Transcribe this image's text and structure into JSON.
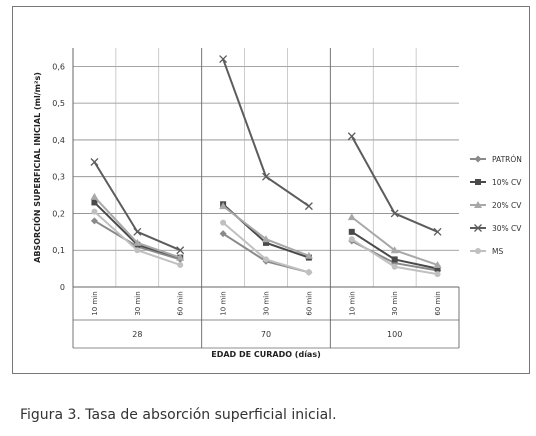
{
  "chart_data": {
    "type": "line",
    "ylabel": "ABSORCIÓN SUPERFICIAL INICIAL (ml/m²s)",
    "xlabel": "EDAD DE CURADO (días)",
    "ylim": [
      0,
      0.65
    ],
    "yticks": [
      "0",
      "0,1",
      "0,2",
      "0,3",
      "0,4",
      "0,5",
      "0,6"
    ],
    "ytick_values": [
      0,
      0.1,
      0.2,
      0.3,
      0.4,
      0.5,
      0.6
    ],
    "groups": [
      "28",
      "70",
      "100"
    ],
    "subcategories": [
      "10 min",
      "30 min",
      "60 min"
    ],
    "legend_position": "right",
    "series": [
      {
        "name": "PATRÓN",
        "color": "#8a8a8a",
        "marker": "diamond",
        "values": [
          [
            0.18,
            0.11,
            0.075
          ],
          [
            0.145,
            0.07,
            0.04
          ],
          [
            0.125,
            0.065,
            0.045
          ]
        ]
      },
      {
        "name": "10% CV",
        "color": "#4a4a4a",
        "marker": "square",
        "values": [
          [
            0.23,
            0.115,
            0.08
          ],
          [
            0.225,
            0.12,
            0.08
          ],
          [
            0.15,
            0.075,
            0.05
          ]
        ]
      },
      {
        "name": "20% CV",
        "color": "#a8a8a8",
        "marker": "triangle",
        "values": [
          [
            0.245,
            0.12,
            0.08
          ],
          [
            0.22,
            0.13,
            0.085
          ],
          [
            0.19,
            0.1,
            0.06
          ]
        ]
      },
      {
        "name": "30% CV",
        "color": "#5c5c5c",
        "marker": "x",
        "values": [
          [
            0.34,
            0.15,
            0.1
          ],
          [
            0.62,
            0.3,
            0.22
          ],
          [
            0.41,
            0.2,
            0.15
          ]
        ]
      },
      {
        "name": "MS",
        "color": "#c0c0c0",
        "marker": "circle",
        "values": [
          [
            0.205,
            0.1,
            0.06
          ],
          [
            0.175,
            0.075,
            0.04
          ],
          [
            0.13,
            0.055,
            0.035
          ]
        ]
      }
    ]
  },
  "caption": {
    "figure_label": "Figura 3.",
    "text": "Tasa de absorción superficial inicial."
  }
}
